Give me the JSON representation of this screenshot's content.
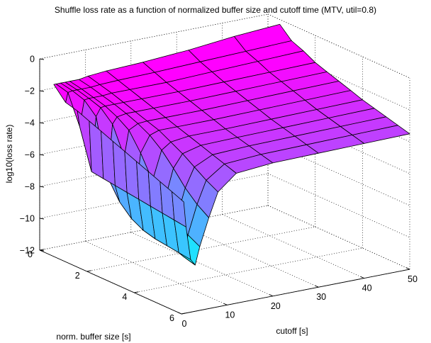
{
  "chart_data": {
    "type": "surface",
    "title": "Shuffle loss rate as a function of normalized buffer size and cutoff time (MTV, util=0.8)",
    "xlabel": "cutoff [s]",
    "ylabel": "norm. buffer size [s]",
    "zlabel": "log10(loss rate)",
    "xlim": [
      0,
      50
    ],
    "ylim": [
      0,
      6
    ],
    "zlim": [
      -12,
      0
    ],
    "xticks": [
      "0",
      "10",
      "20",
      "30",
      "40",
      "50"
    ],
    "yticks": [
      "0",
      "2",
      "4",
      "6"
    ],
    "zticks": [
      "0",
      "−2",
      "−4",
      "−6",
      "−8",
      "−10",
      "−12"
    ],
    "grid": true,
    "colormap": "cool",
    "colormap_colors": [
      "#00ffff",
      "#ff00ff"
    ],
    "x": [
      0.5,
      1,
      2,
      3,
      4,
      6,
      8,
      12,
      20,
      30,
      40,
      50
    ],
    "y": [
      0.5,
      1,
      1.5,
      2,
      2.5,
      3,
      3.5,
      4,
      4.5,
      5,
      5.5,
      6
    ],
    "z_rows": [
      [
        -1.3,
        -1.3,
        -1.3,
        -1.3,
        -1.3,
        -1.3,
        -1.2,
        -1.1,
        -1.0,
        -0.8,
        -0.5,
        -0.3
      ],
      [
        -2.1,
        -1.5,
        -1.45,
        -1.45,
        -1.45,
        -1.45,
        -1.4,
        -1.35,
        -1.3,
        -1.2,
        -1.1,
        -1.0
      ],
      [
        -2.3,
        -3.3,
        -1.7,
        -1.65,
        -1.65,
        -1.65,
        -1.6,
        -1.6,
        -1.6,
        -1.5,
        -1.4,
        -1.3
      ],
      [
        -2.6,
        -5.8,
        -2.4,
        -1.9,
        -1.85,
        -1.85,
        -1.85,
        -1.85,
        -1.85,
        -1.8,
        -1.75,
        -1.7
      ],
      [
        -2.9,
        -5.9,
        -5.9,
        -2.6,
        -2.2,
        -2.1,
        -2.1,
        -2.1,
        -2.1,
        -2.05,
        -2.0,
        -1.95
      ],
      [
        -3.2,
        -6.0,
        -7.1,
        -4.3,
        -2.7,
        -2.4,
        -2.35,
        -2.35,
        -2.35,
        -2.3,
        -2.25,
        -2.2
      ],
      [
        -3.5,
        -6.1,
        -7.8,
        -6.2,
        -3.8,
        -2.8,
        -2.6,
        -2.6,
        -2.6,
        -2.55,
        -2.5,
        -2.45
      ],
      [
        -3.8,
        -6.2,
        -8.2,
        -7.3,
        -5.2,
        -3.4,
        -3.0,
        -2.85,
        -2.85,
        -2.8,
        -2.75,
        -2.7
      ],
      [
        -4.1,
        -6.3,
        -8.4,
        -8.1,
        -6.2,
        -4.2,
        -3.4,
        -3.1,
        -3.05,
        -3.0,
        -2.95,
        -2.9
      ],
      [
        -4.4,
        -6.4,
        -8.5,
        -8.6,
        -7.0,
        -5.1,
        -3.9,
        -3.35,
        -3.25,
        -3.2,
        -3.15,
        -3.1
      ],
      [
        -4.7,
        -6.5,
        -8.6,
        -8.9,
        -7.6,
        -5.8,
        -4.4,
        -3.6,
        -3.45,
        -3.4,
        -3.35,
        -3.3
      ],
      [
        -5.0,
        -6.6,
        -8.7,
        -9.1,
        -8.0,
        -6.3,
        -4.8,
        -3.85,
        -3.65,
        -3.6,
        -3.55,
        -3.5
      ]
    ]
  }
}
